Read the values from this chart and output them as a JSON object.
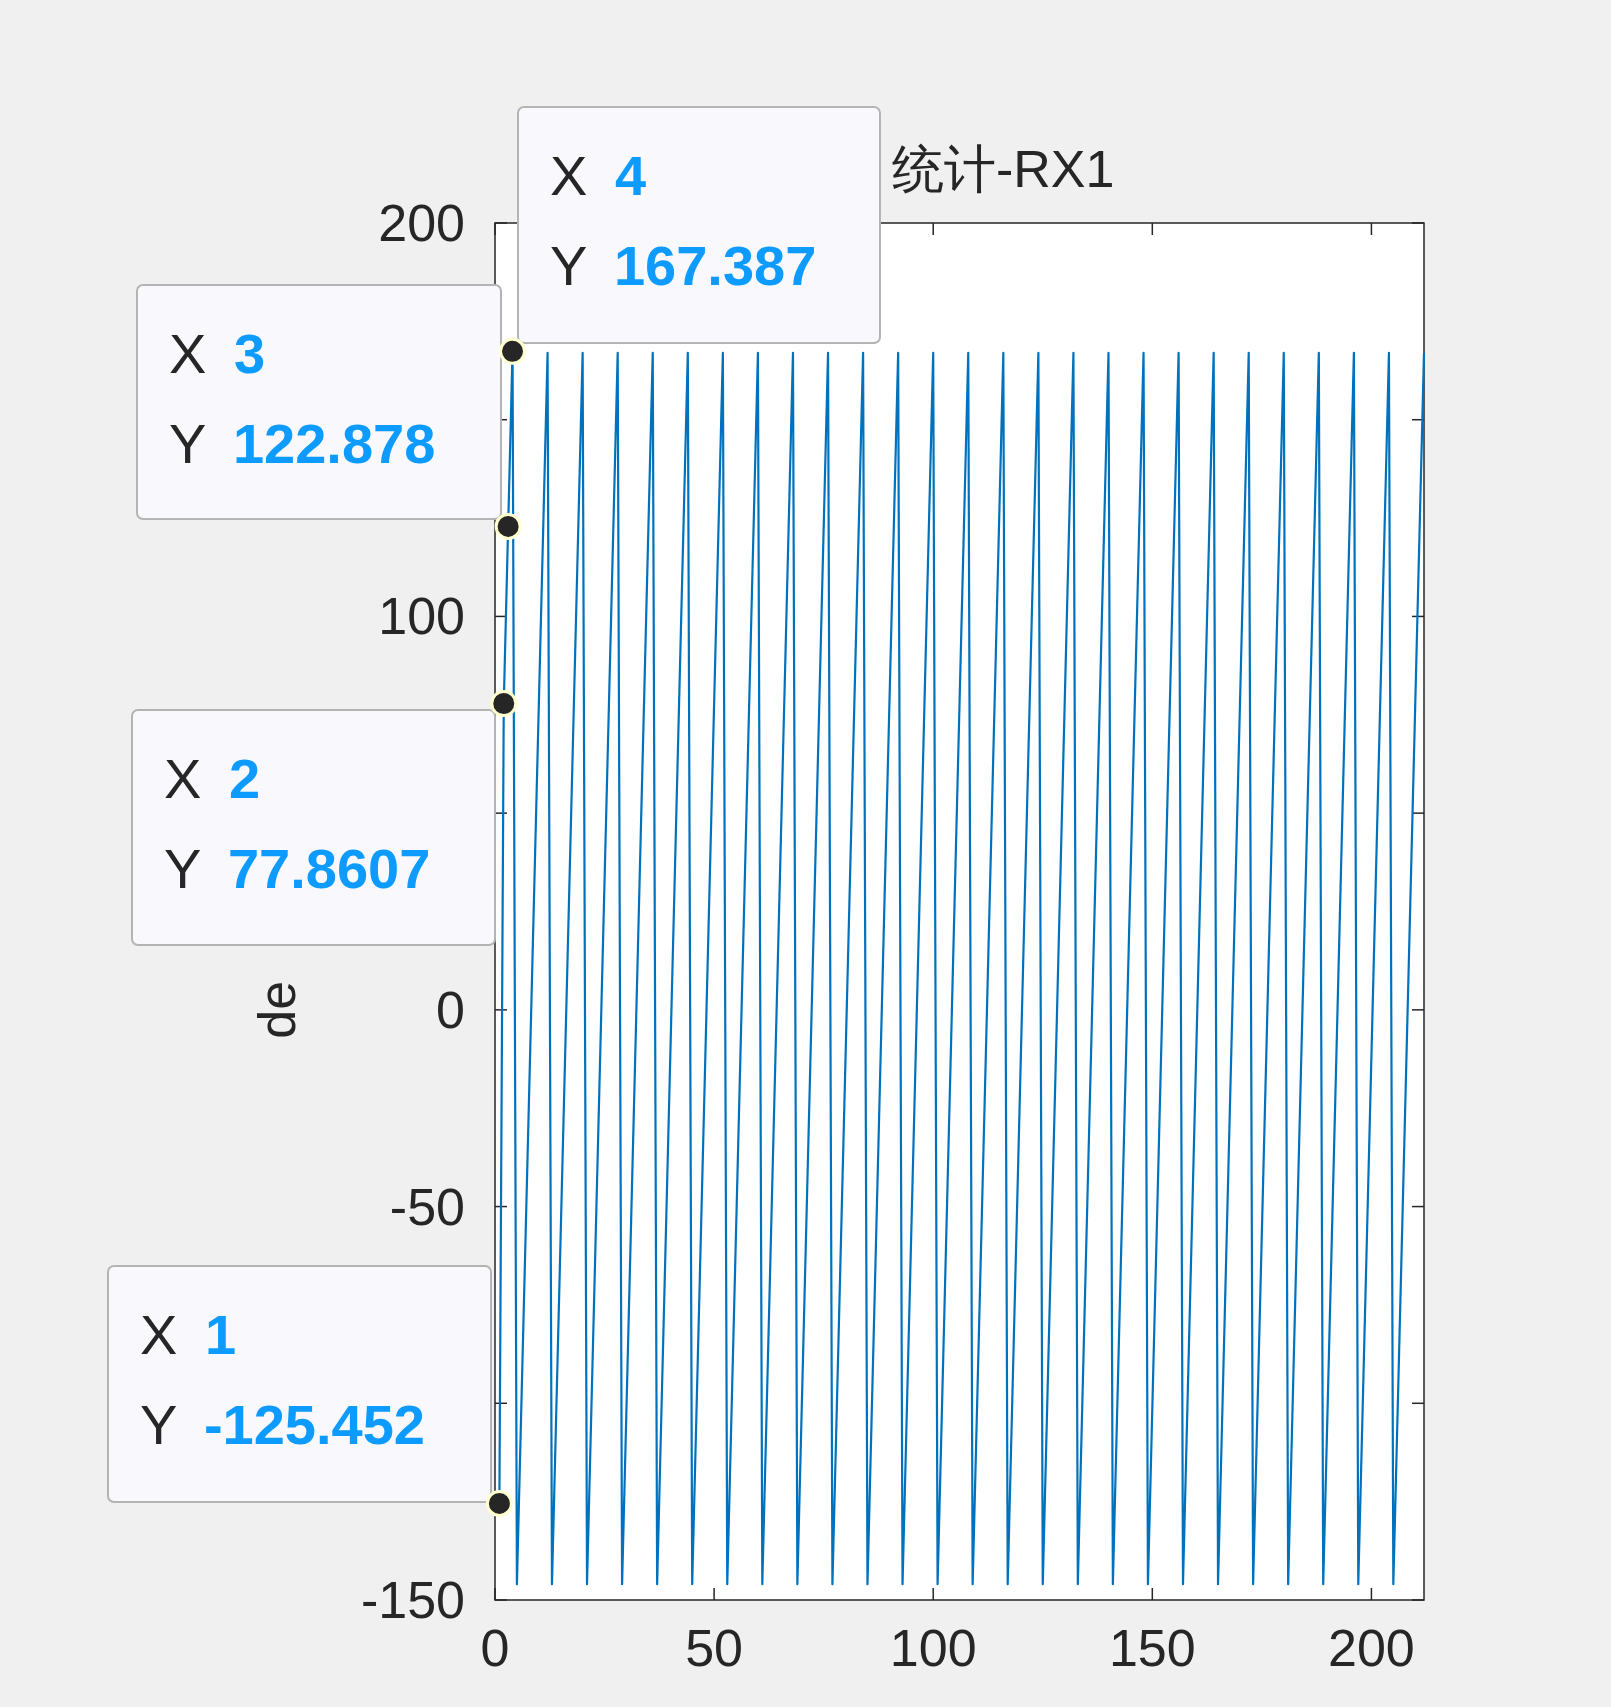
{
  "chart_data": {
    "type": "line",
    "title": "统计-RX1",
    "ylabel": "de",
    "x": [
      1,
      2,
      3,
      4,
      5,
      12,
      13,
      20,
      21,
      28,
      29,
      36,
      37,
      44,
      45,
      52,
      53,
      60,
      61,
      68,
      69,
      76,
      77,
      84,
      85,
      92,
      93,
      100,
      101,
      108,
      109,
      116,
      117,
      124,
      125,
      132,
      133,
      140,
      141,
      148,
      149,
      156,
      157,
      164,
      165,
      172,
      173,
      180,
      181,
      188,
      189,
      196,
      197,
      204,
      205,
      212
    ],
    "series": [
      {
        "color": "#0072bd",
        "values": [
          -125.452,
          77.8607,
          122.878,
          167.387,
          -146,
          167,
          -146,
          167,
          -146,
          167,
          -146,
          167,
          -146,
          167,
          -146,
          167,
          -146,
          167,
          -146,
          167,
          -146,
          167,
          -146,
          167,
          -146,
          167,
          -146,
          167,
          -146,
          167,
          -146,
          167,
          -146,
          167,
          -146,
          167,
          -146,
          167,
          -146,
          167,
          -146,
          167,
          -146,
          167,
          -146,
          167,
          -146,
          167,
          -146,
          167,
          -146,
          167,
          -146,
          167,
          -146,
          167
        ]
      }
    ],
    "xlim": [
      0,
      212
    ],
    "xticks": [
      0,
      50,
      100,
      150,
      200
    ],
    "ylim": [
      -150,
      200
    ],
    "yticks": [
      -150,
      {
        "value": -100,
        "label": null
      },
      -50,
      0,
      {
        "value": 50,
        "label": null
      },
      100,
      {
        "value": 150,
        "label": null
      },
      200
    ],
    "grid": false,
    "marker": "none",
    "line_style": "solid",
    "annotations": [
      {
        "text": "X 1\nY -125.452",
        "x": 1,
        "y": -125.452
      },
      {
        "text": "X 2\nY 77.8607",
        "x": 2,
        "y": 77.8607
      },
      {
        "text": "X 3\nY 122.878",
        "x": 3,
        "y": 122.878
      },
      {
        "text": "X 4\nY 167.387",
        "x": 4,
        "y": 167.387
      }
    ]
  }
}
